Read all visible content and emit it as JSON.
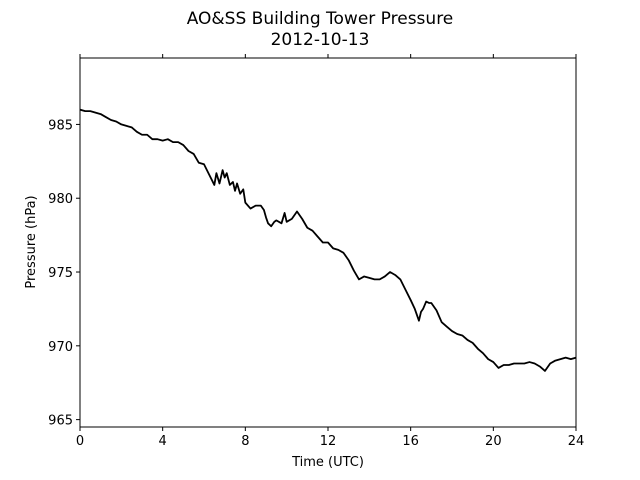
{
  "chart_data": {
    "type": "line",
    "title": "AO&SS Building Tower Pressure",
    "subtitle": "2012-10-13",
    "xlabel": "Time (UTC)",
    "ylabel": "Pressure (hPa)",
    "xlim": [
      0,
      24
    ],
    "ylim": [
      964.5,
      989.5
    ],
    "x_ticks": [
      0,
      4,
      8,
      12,
      16,
      20,
      24
    ],
    "y_ticks": [
      965,
      970,
      975,
      980,
      985
    ],
    "grid": false,
    "legend": "none",
    "line_color": "#000000",
    "series": [
      {
        "x": [
          0,
          0.25,
          0.5,
          0.75,
          1.0,
          1.25,
          1.5,
          1.75,
          2.0,
          2.25,
          2.5,
          2.75,
          3.0,
          3.25,
          3.5,
          3.75,
          4.0,
          4.25,
          4.5,
          4.75,
          5.0,
          5.25,
          5.5,
          5.75,
          6.0,
          6.25,
          6.5,
          6.6,
          6.75,
          6.9,
          7.0,
          7.1,
          7.25,
          7.4,
          7.5,
          7.6,
          7.75,
          7.9,
          8.0,
          8.25,
          8.5,
          8.75,
          8.9,
          9.0,
          9.1,
          9.25,
          9.4,
          9.5,
          9.75,
          9.9,
          10.0,
          10.25,
          10.5,
          10.75,
          11.0,
          11.25,
          11.5,
          11.75,
          12.0,
          12.25,
          12.5,
          12.75,
          13.0,
          13.25,
          13.5,
          13.75,
          14.0,
          14.25,
          14.5,
          14.75,
          15.0,
          15.25,
          15.5,
          15.75,
          16.0,
          16.2,
          16.4,
          16.5,
          16.6,
          16.75,
          16.9,
          17.0,
          17.25,
          17.5,
          17.75,
          18.0,
          18.25,
          18.5,
          18.75,
          19.0,
          19.25,
          19.5,
          19.75,
          20.0,
          20.25,
          20.5,
          20.75,
          21.0,
          21.25,
          21.5,
          21.75,
          22.0,
          22.25,
          22.5,
          22.75,
          23.0,
          23.25,
          23.5,
          23.75,
          24.0
        ],
        "y": [
          986.0,
          985.9,
          985.9,
          985.8,
          985.7,
          985.5,
          985.3,
          985.2,
          985.0,
          984.9,
          984.8,
          984.5,
          984.3,
          984.3,
          984.0,
          984.0,
          983.9,
          984.0,
          983.8,
          983.8,
          983.6,
          983.2,
          983.0,
          982.4,
          982.3,
          981.6,
          980.9,
          981.7,
          981.0,
          981.9,
          981.4,
          981.7,
          980.9,
          981.1,
          980.5,
          981.0,
          980.3,
          980.6,
          979.7,
          979.3,
          979.5,
          979.5,
          979.2,
          978.7,
          978.3,
          978.1,
          978.4,
          978.5,
          978.3,
          979.0,
          978.4,
          978.6,
          979.1,
          978.6,
          978.0,
          977.8,
          977.4,
          977.0,
          977.0,
          976.6,
          976.5,
          976.3,
          975.8,
          975.1,
          974.5,
          974.7,
          974.6,
          974.5,
          974.5,
          974.7,
          975.0,
          974.8,
          974.5,
          973.8,
          973.1,
          972.5,
          971.7,
          972.3,
          972.5,
          973.0,
          972.9,
          972.9,
          972.4,
          971.6,
          971.3,
          971.0,
          970.8,
          970.7,
          970.4,
          970.2,
          969.8,
          969.5,
          969.1,
          968.9,
          968.5,
          968.7,
          968.7,
          968.8,
          968.8,
          968.8,
          968.9,
          968.8,
          968.6,
          968.3,
          968.8,
          969.0,
          969.1,
          969.2,
          969.1,
          969.2
        ]
      }
    ]
  }
}
